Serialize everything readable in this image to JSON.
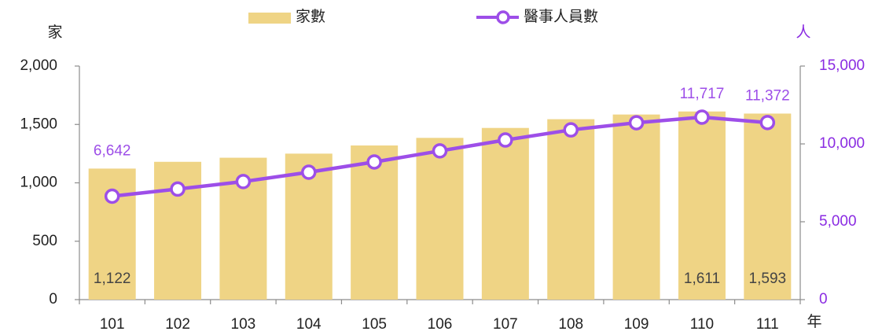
{
  "chart_data": {
    "type": "bar",
    "categories": [
      "101",
      "102",
      "103",
      "104",
      "105",
      "106",
      "107",
      "108",
      "109",
      "110",
      "111"
    ],
    "y_label": "家",
    "y2_label": "人",
    "x_label": "年",
    "ylim": [
      0,
      2000
    ],
    "yticks": [
      0,
      500,
      {
        "value": 1000,
        "label": "1,000"
      },
      {
        "value": 1500,
        "label": "1,500"
      },
      {
        "value": 2000,
        "label": "2,000"
      }
    ],
    "y2lim": [
      0,
      15000
    ],
    "y2ticks": [
      0,
      {
        "value": 5000,
        "label": "5,000"
      },
      {
        "value": 10000,
        "label": "10,000"
      },
      {
        "value": 15000,
        "label": "15,000"
      }
    ],
    "legend": "top",
    "series": [
      {
        "name": "家數",
        "type": "bar",
        "color": "#efd485",
        "values": [
          1122,
          1180,
          1215,
          1250,
          1320,
          1385,
          1470,
          1545,
          1585,
          1611,
          1593
        ],
        "value_labels": [
          "1,122",
          null,
          null,
          null,
          null,
          null,
          null,
          null,
          null,
          "1,611",
          "1,593"
        ]
      },
      {
        "name": "醫事人員數",
        "type": "line",
        "axis": "y2",
        "color": "#9d4ee8",
        "values": [
          6642,
          7100,
          7580,
          8180,
          8840,
          9550,
          10250,
          10900,
          11360,
          11717,
          11372
        ],
        "value_labels": [
          "6,642",
          null,
          null,
          null,
          null,
          null,
          null,
          null,
          null,
          "11,717",
          "11,372"
        ]
      }
    ]
  }
}
